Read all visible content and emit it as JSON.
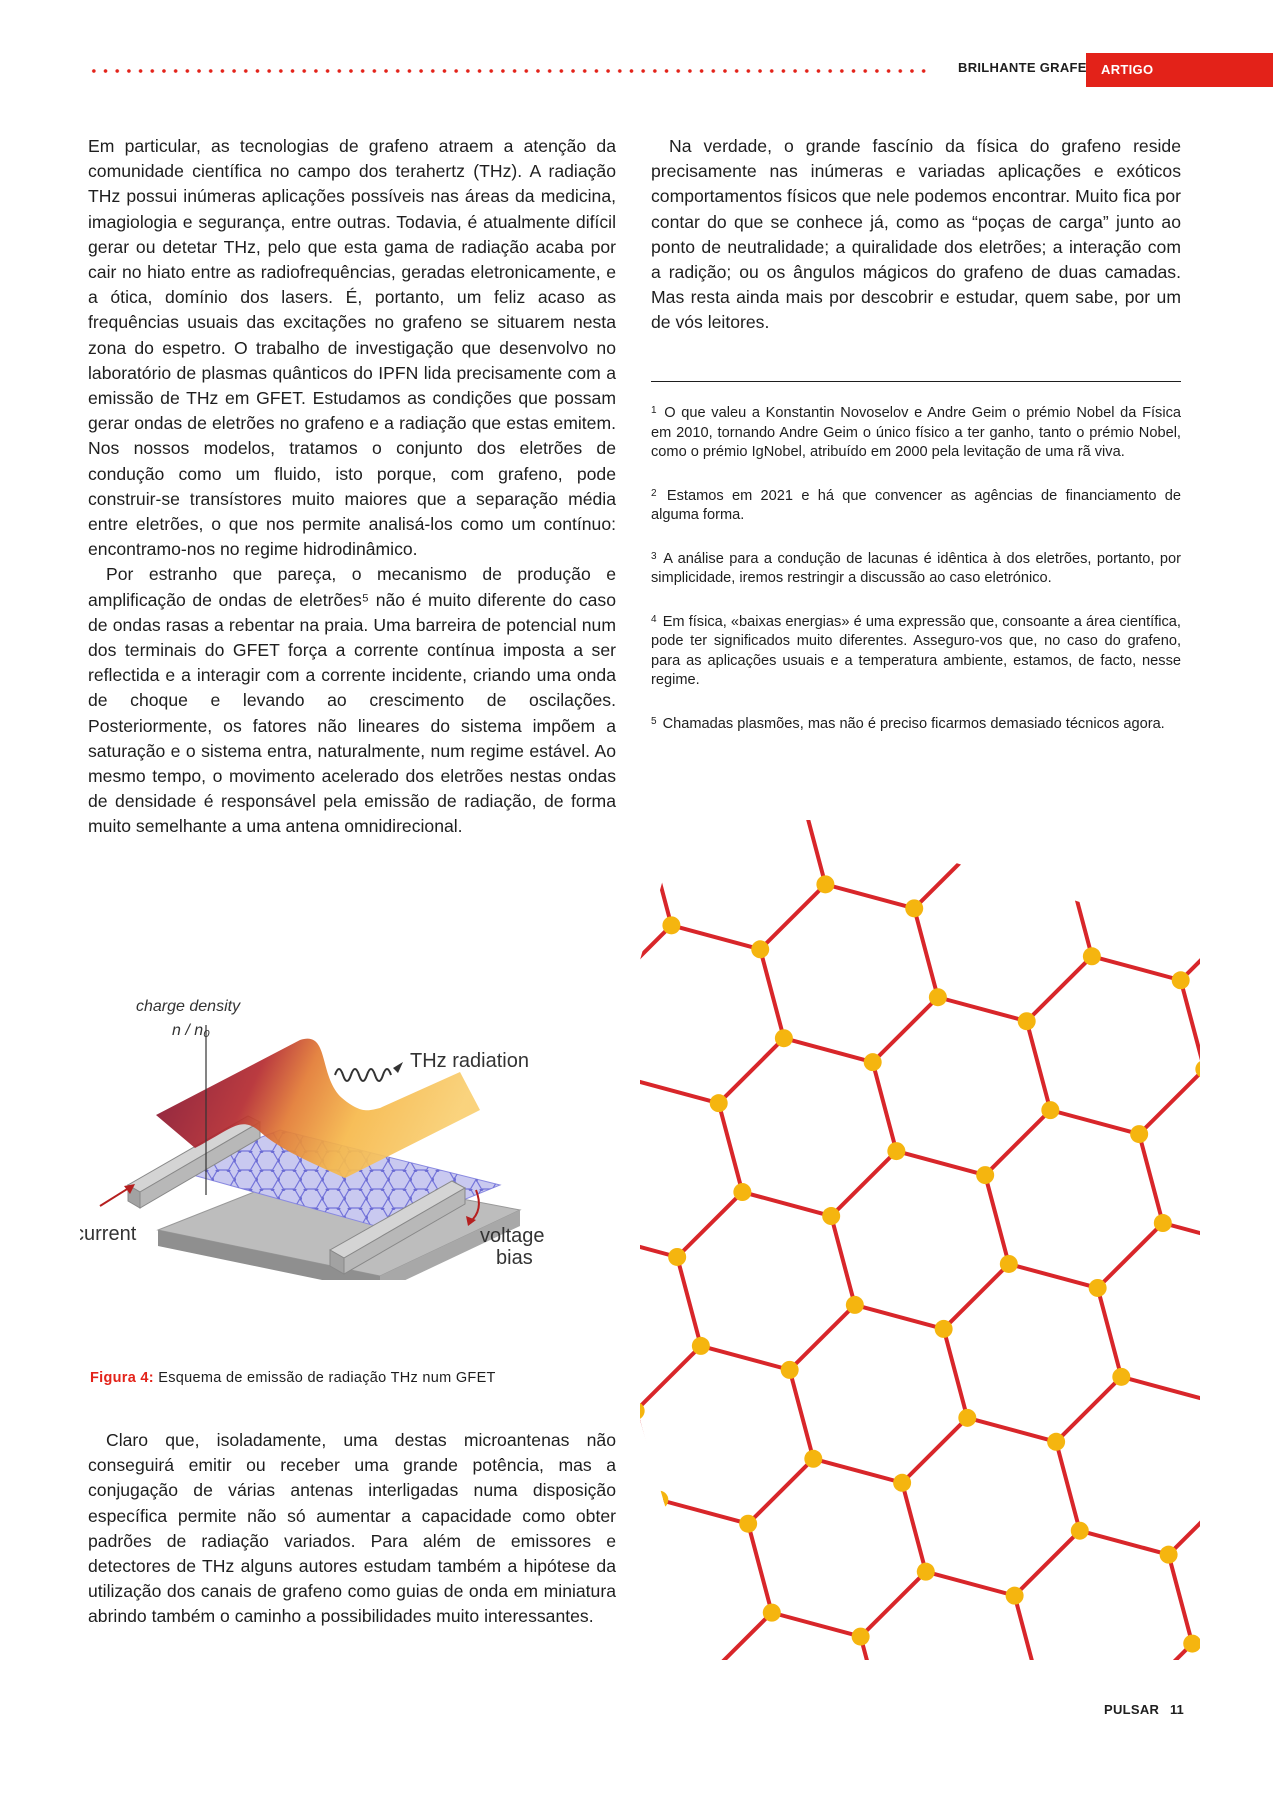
{
  "header": {
    "section": "BRILHANTE GRAFENO",
    "tag": "ARTIGO"
  },
  "left_column": [
    "Em particular, as tecnologias de grafeno atraem a atenção da comunidade científica no campo dos terahertz (THz). A radiação THz possui inúmeras aplicações possíveis nas áreas da medicina, imagiologia e segurança, entre outras. Todavia, é atualmente difícil gerar ou detetar THz, pelo que esta gama de radiação acaba por cair no hiato entre as radiofrequências, geradas eletronicamente, e a ótica, domínio dos lasers. É, portanto, um feliz acaso as frequências usuais das excitações no grafeno se situarem nesta zona do espetro. O trabalho de investigação que desenvolvo no laboratório de plasmas quânticos do IPFN lida precisamente com a emissão de THz em GFET. Estudamos as condições que possam gerar ondas de eletrões no grafeno e a radiação que estas emitem. Nos nossos modelos, tratamos o conjunto dos eletrões de condução como um fluido, isto porque, com grafeno, pode construir-se transístores muito maiores que a separação média entre eletrões, o que nos permite analisá-los como um contínuo: encontramo-nos no regime hidrodinâmico.",
    "Por estranho que pareça, o mecanismo de produção e amplificação de ondas de eletrões⁵ não é muito diferente do caso de ondas rasas a rebentar na praia. Uma barreira de potencial num dos terminais do GFET força a corrente contínua imposta a ser reflectida e a interagir com a corrente incidente, criando uma onda de choque e levando ao crescimento de oscilações. Posteriormente, os fatores não lineares do sistema impõem a saturação e o sistema entra, naturalmente, num regime estável. Ao mesmo tempo, o movimento acelerado dos eletrões nestas ondas de densidade é responsável pela emissão de radiação, de forma muito semelhante a uma antena omnidirecional."
  ],
  "right_column": [
    "Na verdade, o grande fascínio da física do grafeno reside precisamente nas inúmeras e variadas aplicações e exóticos comportamentos físicos que nele podemos encontrar. Muito fica por contar do que se conhece já, como as “poças de carga” junto ao ponto de neutralidade; a quiralidade dos eletrões; a interação com a radição; ou os ângulos mágicos do grafeno de duas camadas. Mas resta ainda mais por descobrir e estudar, quem sabe, por um de vós leitores."
  ],
  "footnotes": [
    {
      "num": "1",
      "text": "O que valeu a Konstantin Novoselov e Andre Geim o prémio Nobel da Física em 2010, tornando Andre Geim o único físico a ter ganho, tanto o prémio Nobel, como o prémio IgNobel, atribuído em 2000 pela levitação de uma rã viva."
    },
    {
      "num": "2",
      "text": "Estamos em 2021 e há que convencer as agências de financiamento de alguma forma."
    },
    {
      "num": "3",
      "text": "A análise para a condução de lacunas é idêntica à dos eletrões, portanto, por simplicidade, iremos restringir a discussão ao caso eletrónico."
    },
    {
      "num": "4",
      "text": "Em física, «baixas energias» é uma expressão que, consoante a área científica, pode ter significados muito diferentes. Asseguro-vos que, no caso do grafeno, para as aplicações usuais e a temperatura ambiente, estamos, de facto, nesse regime."
    },
    {
      "num": "5",
      "text": "Chamadas plasmões, mas não é preciso ficarmos demasiado técnicos agora."
    }
  ],
  "figure": {
    "label_density": "charge density",
    "label_ratio": "n / n₀",
    "label_thz": "THz radiation",
    "label_current": "current",
    "label_voltage_1": "voltage",
    "label_voltage_2": "bias",
    "caption_label": "Figura 4:",
    "caption_text": "Esquema de emissão de radiação THz num GFET"
  },
  "left_column_bottom": [
    "Claro que, isoladamente, uma destas microantenas não conseguirá emitir ou receber uma grande potência, mas a conjugação de várias antenas interligadas numa disposição específica permite não só aumentar a capacidade como obter padrões de radiação variados. Para além de emissores e detectores de THz alguns autores estudam também a hipótese da utilização dos canais de grafeno como guias de onda em miniatura abrindo também o caminho a possibilidades muito interessantes."
  ],
  "colors": {
    "accent": "#e32219",
    "lattice_bond": "#d8262a",
    "lattice_atom": "#f5b50f"
  },
  "footer": {
    "magazine": "PULSAR",
    "page": "11"
  }
}
